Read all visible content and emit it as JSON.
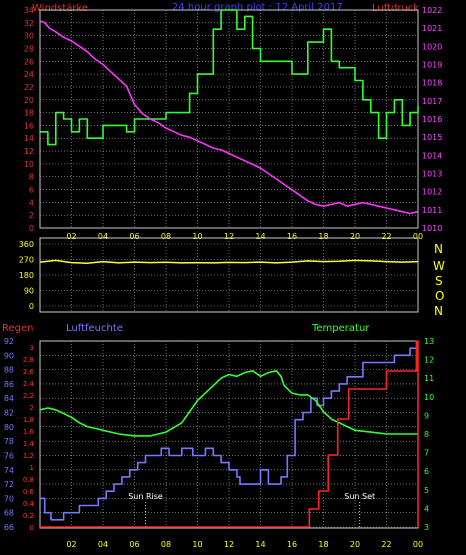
{
  "header": {
    "title": "24 hour graph plot : 12 April 2017",
    "left_label": "Windstärke",
    "right_label": "Luftdruck"
  },
  "panel2": {
    "compass": [
      "N",
      "W",
      "S",
      "O",
      "N"
    ]
  },
  "panel3": {
    "regen_label": "Regen",
    "luftfeuchte_label": "Luftfeuchte",
    "temperatur_label": "Temperatur",
    "sun_rise_label": "Sun Rise",
    "sun_set_label": "Sun Set"
  },
  "colors": {
    "wind": "#33ff33",
    "pressure": "#ff33ff",
    "direction": "#ffff33",
    "humidity": "#7777ff",
    "temperature": "#33ff33",
    "rain": "#ff2222",
    "grid": "#b5b5b5"
  },
  "chart_data": [
    {
      "type": "line",
      "name": "wind-and-pressure",
      "x_ticks": [
        "02",
        "04",
        "06",
        "08",
        "10",
        "12",
        "14",
        "16",
        "18",
        "20",
        "22",
        "00"
      ],
      "xlim": [
        0,
        24
      ],
      "ylim_left": [
        0,
        34
      ],
      "ylim_right": [
        1010,
        1022
      ],
      "yticks_left": [
        "0",
        "2",
        "4",
        "6",
        "8",
        "10",
        "12",
        "14",
        "16",
        "18",
        "20",
        "22",
        "24",
        "26",
        "28",
        "30",
        "32",
        "34"
      ],
      "yticks_right": [
        "1010",
        "1011",
        "1012",
        "1013",
        "1014",
        "1015",
        "1016",
        "1017",
        "1018",
        "1019",
        "1020",
        "1021",
        "1022"
      ],
      "grid": true,
      "series": [
        {
          "id": "wind",
          "axis": "left",
          "step": true,
          "x": [
            0,
            0.5,
            1,
            1.5,
            2,
            2.5,
            3,
            4,
            5,
            5.5,
            6,
            7,
            8,
            9,
            9.5,
            10,
            11,
            11.5,
            12,
            12.5,
            13,
            13.5,
            14,
            15,
            16,
            17,
            18,
            18.5,
            19,
            19.5,
            20,
            20.5,
            21,
            21.5,
            22,
            22.5,
            23,
            23.5,
            24
          ],
          "y": [
            15,
            13,
            18,
            17,
            15,
            17,
            14,
            16,
            16,
            15,
            17,
            17,
            18,
            18,
            21,
            24,
            31,
            34,
            34,
            31,
            33,
            28,
            26,
            26,
            24,
            29,
            31,
            26,
            25,
            25,
            23,
            20,
            18,
            14,
            18,
            20,
            16,
            18,
            19
          ]
        },
        {
          "id": "pressure",
          "axis": "right",
          "x": [
            0,
            0.3,
            0.6,
            1,
            1.5,
            2,
            2.5,
            3,
            3.5,
            4,
            4.5,
            5,
            5.5,
            6,
            6.5,
            7,
            7.5,
            8,
            8.5,
            9,
            9.5,
            10,
            10.5,
            11,
            11.5,
            12,
            12.5,
            13,
            13.5,
            14,
            14.5,
            15,
            15.5,
            16,
            16.5,
            17,
            17.5,
            18,
            18.5,
            19,
            19.5,
            20,
            20.5,
            21,
            21.5,
            22,
            22.5,
            23,
            23.5,
            24
          ],
          "y": [
            1021.4,
            1021.3,
            1021.0,
            1020.8,
            1020.5,
            1020.3,
            1020.0,
            1019.7,
            1019.3,
            1019.0,
            1018.6,
            1018.2,
            1017.8,
            1016.8,
            1016.3,
            1016.0,
            1015.8,
            1015.5,
            1015.3,
            1015.1,
            1015.0,
            1014.8,
            1014.6,
            1014.4,
            1014.3,
            1014.1,
            1013.9,
            1013.7,
            1013.5,
            1013.3,
            1013.0,
            1012.7,
            1012.4,
            1012.1,
            1011.8,
            1011.5,
            1011.3,
            1011.2,
            1011.3,
            1011.4,
            1011.2,
            1011.3,
            1011.4,
            1011.3,
            1011.2,
            1011.1,
            1011.0,
            1010.9,
            1010.8,
            1010.9
          ]
        }
      ]
    },
    {
      "type": "line",
      "name": "wind-direction",
      "x_ticks": [
        "02",
        "04",
        "06",
        "08",
        "10",
        "12",
        "14",
        "16",
        "18",
        "20",
        "22",
        "00"
      ],
      "xlim": [
        0,
        24
      ],
      "ylim": [
        0,
        360
      ],
      "yticks": [
        "0",
        "90",
        "180",
        "270",
        "360"
      ],
      "grid": true,
      "series": [
        {
          "id": "direction",
          "x": [
            0,
            1,
            2,
            3,
            4,
            5,
            6,
            7,
            8,
            9,
            10,
            11,
            12,
            13,
            14,
            15,
            16,
            17,
            18,
            19,
            20,
            21,
            22,
            23,
            24
          ],
          "y": [
            255,
            265,
            252,
            248,
            258,
            250,
            255,
            252,
            254,
            250,
            252,
            250,
            253,
            252,
            255,
            250,
            255,
            262,
            258,
            260,
            265,
            262,
            258,
            255,
            258
          ]
        }
      ]
    },
    {
      "type": "line",
      "name": "rain-humidity-temperature",
      "x_ticks": [
        "02",
        "04",
        "06",
        "08",
        "10",
        "12",
        "14",
        "16",
        "18",
        "20",
        "22",
        "00"
      ],
      "xlim": [
        0,
        24
      ],
      "ylim_rain": [
        0,
        3.1
      ],
      "ylim_humidity": [
        66,
        92
      ],
      "ylim_temp": [
        3,
        13
      ],
      "yticks_rain": [
        "0",
        "0.2",
        "0.4",
        "0.6",
        "0.8",
        "1",
        "1.2",
        "1.4",
        "1.6",
        "1.8",
        "2",
        "2.2",
        "2.4",
        "2.6",
        "2.8",
        "3"
      ],
      "yticks_humidity": [
        "66",
        "68",
        "70",
        "72",
        "74",
        "76",
        "78",
        "80",
        "82",
        "84",
        "86",
        "88",
        "90",
        "92"
      ],
      "yticks_temp": [
        "3",
        "4",
        "5",
        "6",
        "7",
        "8",
        "9",
        "10",
        "11",
        "12",
        "13"
      ],
      "grid": true,
      "annotations": [
        {
          "id": "sun_rise",
          "x": 6.7
        },
        {
          "id": "sun_set",
          "x": 20.3
        }
      ],
      "series": [
        {
          "id": "humidity",
          "axis": "humidity",
          "step": true,
          "x": [
            0,
            0.3,
            0.7,
            1.5,
            2.5,
            3.2,
            3.7,
            4.2,
            4.7,
            5.2,
            5.7,
            6.2,
            6.7,
            7.2,
            7.7,
            8.2,
            9,
            9.7,
            10.5,
            11,
            11.5,
            12,
            12.5,
            12.7,
            13.5,
            14,
            14.5,
            14.8,
            15.3,
            15.7,
            16.2,
            16.7,
            17.2,
            17.6,
            18,
            18.5,
            19,
            19.5,
            20,
            20.5,
            21,
            21.5,
            22,
            22.5,
            23,
            23.5,
            24
          ],
          "y": [
            70,
            68,
            67,
            68,
            69,
            69,
            70,
            71,
            72,
            73,
            74,
            75,
            76,
            76,
            77,
            76,
            77,
            76,
            77,
            76,
            75,
            74,
            73,
            72,
            72,
            74,
            72,
            72,
            73,
            76,
            81,
            82,
            84,
            83,
            84,
            85,
            86,
            87,
            87,
            89,
            89,
            89,
            89,
            90,
            90,
            91,
            91
          ]
        },
        {
          "id": "temperature",
          "axis": "temp",
          "x": [
            0,
            0.5,
            1,
            1.5,
            2,
            2.5,
            3,
            3.5,
            4,
            4.5,
            5,
            6,
            7,
            8,
            9,
            9.5,
            10,
            10.5,
            11,
            11.5,
            12,
            12.5,
            13,
            13.5,
            14,
            14.5,
            15,
            15.3,
            15.5,
            16,
            16.5,
            17,
            17.5,
            18,
            18.5,
            19,
            19.5,
            20,
            21,
            22,
            23,
            24
          ],
          "y": [
            9.3,
            9.4,
            9.3,
            9.1,
            8.9,
            8.6,
            8.4,
            8.3,
            8.2,
            8.1,
            8.0,
            7.9,
            7.9,
            8.1,
            8.6,
            9.2,
            9.8,
            10.2,
            10.6,
            11.0,
            11.2,
            11.1,
            11.3,
            11.4,
            11.1,
            11.3,
            11.4,
            11.1,
            10.6,
            10.2,
            10.1,
            10.1,
            9.8,
            9.2,
            8.8,
            8.6,
            8.4,
            8.2,
            8.1,
            8.0,
            8.0,
            8.0
          ]
        },
        {
          "id": "rain",
          "axis": "rain",
          "step": true,
          "x": [
            0,
            16.9,
            17.1,
            17.7,
            18.3,
            18.9,
            19.6,
            20.2,
            20.9,
            21.4,
            22,
            22.5,
            23,
            23.5,
            23.9,
            24
          ],
          "y": [
            0,
            0,
            0.3,
            0.6,
            1.2,
            1.8,
            2.3,
            2.3,
            2.3,
            2.3,
            2.6,
            2.6,
            2.6,
            2.6,
            3.1,
            0
          ]
        }
      ]
    }
  ]
}
